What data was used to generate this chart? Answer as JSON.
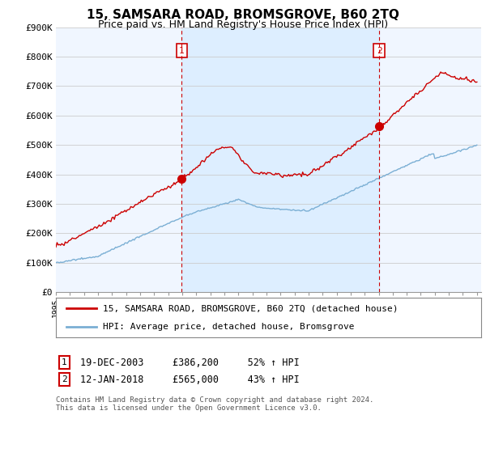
{
  "title": "15, SAMSARA ROAD, BROMSGROVE, B60 2TQ",
  "subtitle": "Price paid vs. HM Land Registry's House Price Index (HPI)",
  "ylim": [
    0,
    900000
  ],
  "yticks": [
    0,
    100000,
    200000,
    300000,
    400000,
    500000,
    600000,
    700000,
    800000,
    900000
  ],
  "ytick_labels": [
    "£0",
    "£100K",
    "£200K",
    "£300K",
    "£400K",
    "£500K",
    "£600K",
    "£700K",
    "£800K",
    "£900K"
  ],
  "xlim_start": 1995,
  "xlim_end": 2025.3,
  "sale1_date": 2003.97,
  "sale1_price": 386200,
  "sale2_date": 2018.04,
  "sale2_price": 565000,
  "sale1_info": "19-DEC-2003     £386,200     52% ↑ HPI",
  "sale2_info": "12-JAN-2018     £565,000     43% ↑ HPI",
  "red_color": "#cc0000",
  "blue_color": "#7bafd4",
  "shade_color": "#ddeeff",
  "grid_color": "#cccccc",
  "legend_label_red": "15, SAMSARA ROAD, BROMSGROVE, B60 2TQ (detached house)",
  "legend_label_blue": "HPI: Average price, detached house, Bromsgrove",
  "footnote": "Contains HM Land Registry data © Crown copyright and database right 2024.\nThis data is licensed under the Open Government Licence v3.0.",
  "background_color": "#ffffff",
  "plot_bg_color": "#f0f6ff"
}
